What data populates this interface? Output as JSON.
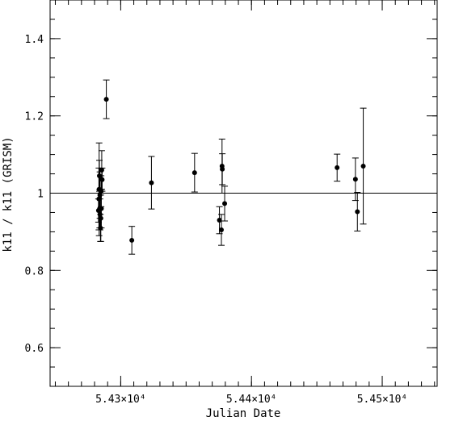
{
  "chart_data": {
    "type": "scatter",
    "title": "",
    "xlabel": "Julian Date",
    "ylabel": "k11 / k11 (GRISM)",
    "xlim": [
      54246,
      54542
    ],
    "ylim": [
      0.5,
      1.5
    ],
    "x_ticks": [
      {
        "value": 54300,
        "label": "5.43×10⁴"
      },
      {
        "value": 54400,
        "label": "5.44×10⁴"
      },
      {
        "value": 54500,
        "label": "5.45×10⁴"
      }
    ],
    "y_ticks": [
      {
        "value": 0.6,
        "label": "0.6"
      },
      {
        "value": 0.8,
        "label": "0.8"
      },
      {
        "value": 1.0,
        "label": "1"
      },
      {
        "value": 1.2,
        "label": "1.2"
      },
      {
        "value": 1.4,
        "label": "1.4"
      }
    ],
    "x_minor_step": 10,
    "y_minor_step": 0.05,
    "reference_line_y": 1.0,
    "grid": false,
    "points": [
      {
        "x": 54283.0,
        "y": 0.955,
        "err": 0.03
      },
      {
        "x": 54283.3,
        "y": 0.985,
        "err": 0.08
      },
      {
        "x": 54283.5,
        "y": 1.01,
        "err": 0.12
      },
      {
        "x": 54283.7,
        "y": 1.045,
        "err": 0.04
      },
      {
        "x": 54283.9,
        "y": 0.96,
        "err": 0.05
      },
      {
        "x": 54284.1,
        "y": 0.995,
        "err": 0.06
      },
      {
        "x": 54284.2,
        "y": 0.945,
        "err": 0.04
      },
      {
        "x": 54284.5,
        "y": 0.91,
        "err": 0.035
      },
      {
        "x": 54284.8,
        "y": 0.935,
        "err": 0.06
      },
      {
        "x": 54285.0,
        "y": 1.005,
        "err": 0.04
      },
      {
        "x": 54285.2,
        "y": 0.96,
        "err": 0.05
      },
      {
        "x": 54285.5,
        "y": 1.06,
        "err": 0.05
      },
      {
        "x": 54285.8,
        "y": 1.035,
        "err": 0.03
      },
      {
        "x": 54289.0,
        "y": 1.243,
        "err": 0.05
      },
      {
        "x": 54308.5,
        "y": 0.878,
        "err": 0.036
      },
      {
        "x": 54323.5,
        "y": 1.027,
        "err": 0.068
      },
      {
        "x": 54356.5,
        "y": 1.053,
        "err": 0.05
      },
      {
        "x": 54375.5,
        "y": 0.93,
        "err": 0.035
      },
      {
        "x": 54377.0,
        "y": 0.905,
        "err": 0.04
      },
      {
        "x": 54377.5,
        "y": 1.07,
        "err": 0.07
      },
      {
        "x": 54377.7,
        "y": 1.062,
        "err": 0.04
      },
      {
        "x": 54379.5,
        "y": 0.973,
        "err": 0.045
      },
      {
        "x": 54465.5,
        "y": 1.066,
        "err": 0.035
      },
      {
        "x": 54479.5,
        "y": 1.036,
        "err": 0.055
      },
      {
        "x": 54481.0,
        "y": 0.952,
        "err": 0.05
      },
      {
        "x": 54485.5,
        "y": 1.07,
        "err": 0.15
      }
    ]
  }
}
